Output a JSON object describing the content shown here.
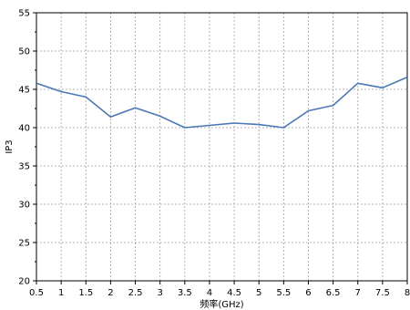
{
  "chart_data": {
    "type": "line",
    "title": "",
    "xlabel": "频率(GHz)",
    "ylabel": "IP3",
    "xlim": [
      0.5,
      8
    ],
    "ylim": [
      20,
      55
    ],
    "grid": true,
    "x_ticks": [
      0.5,
      1,
      1.5,
      2,
      2.5,
      3,
      3.5,
      4,
      4.5,
      5,
      5.5,
      6,
      6.5,
      7,
      7.5,
      8
    ],
    "x_tick_labels": [
      "0.5",
      "1",
      "1.5",
      "2",
      "2.5",
      "3",
      "3.5",
      "4",
      "4.5",
      "5",
      "5.5",
      "6",
      "6.5",
      "7",
      "7.5",
      "8"
    ],
    "y_ticks": [
      20,
      25,
      30,
      35,
      40,
      45,
      50,
      55
    ],
    "y_tick_labels": [
      "20",
      "25",
      "30",
      "35",
      "40",
      "45",
      "50",
      "55"
    ],
    "series": [
      {
        "color": "#4a78b4",
        "x": [
          0.5,
          1,
          1.5,
          2,
          2.5,
          3,
          3.5,
          4,
          4.5,
          5,
          5.5,
          6,
          6.5,
          7,
          7.5,
          8
        ],
        "y": [
          45.8,
          44.7,
          44.0,
          41.4,
          42.6,
          41.5,
          40.0,
          40.3,
          40.6,
          40.4,
          40.0,
          42.2,
          42.9,
          45.8,
          45.2,
          46.6
        ]
      }
    ]
  }
}
